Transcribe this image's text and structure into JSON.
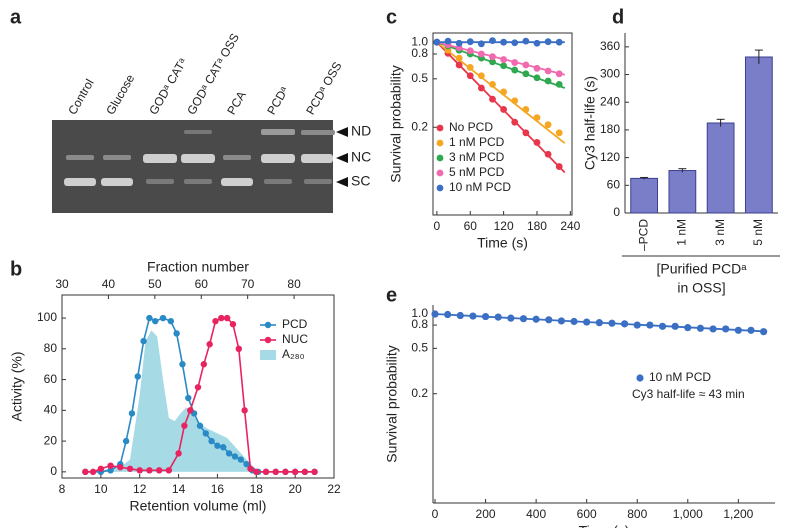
{
  "panel_labels": [
    "a",
    "b",
    "c",
    "d",
    "e"
  ],
  "gel": {
    "lanes": [
      "Control",
      "Glucose",
      "GODᵃ CATᵃ",
      "GODᵃ CATᵃ OSS",
      "PCA",
      "PCDᵃ",
      "PCDᵃ OSS"
    ],
    "band_labels": [
      "ND",
      "NC",
      "SC"
    ]
  },
  "chart_data": [
    {
      "type": "line",
      "xlabel": "Retention volume (ml)",
      "ylabel": "Activity (%)",
      "x2label": "Fraction number",
      "xlim": [
        8,
        22
      ],
      "xticks": [
        8,
        10,
        12,
        14,
        16,
        18,
        20,
        22
      ],
      "x2lim": [
        30,
        88.6
      ],
      "x2ticks": [
        30,
        40,
        50,
        60,
        70,
        80
      ],
      "ylim": [
        -4,
        115
      ],
      "yticks": [
        0,
        20,
        40,
        60,
        80,
        100
      ],
      "legend": "upper right",
      "series": [
        {
          "name": "PCD",
          "color": "#2a8ac6",
          "kind": "line",
          "x": [
            9.2,
            10,
            10.5,
            11,
            11.3,
            11.6,
            11.9,
            12.2,
            12.5,
            12.8,
            13.2,
            13.6,
            13.9,
            14.2,
            14.5,
            14.8,
            15.1,
            15.4,
            15.7,
            16,
            16.3,
            16.6,
            16.9,
            17.2,
            17.5,
            17.8,
            18.1,
            18.5,
            19,
            19.5,
            20,
            20.5,
            21
          ],
          "values": [
            0,
            0,
            1,
            5,
            20,
            38,
            62,
            85,
            100,
            98,
            100,
            98,
            90,
            70,
            48,
            38,
            30,
            25,
            20,
            17,
            16,
            12,
            10,
            8,
            5,
            1,
            0,
            0,
            0,
            0,
            0,
            0,
            0
          ]
        },
        {
          "name": "NUC",
          "color": "#e8235f",
          "kind": "line",
          "x": [
            9.2,
            9.6,
            10,
            10.5,
            11,
            11.5,
            12,
            12.5,
            13,
            13.5,
            14,
            14.3,
            14.6,
            15,
            15.3,
            15.6,
            15.9,
            16.2,
            16.5,
            16.8,
            17.1,
            17.4,
            17.7,
            18,
            18.5,
            19,
            19.5,
            20,
            20.5,
            21
          ],
          "values": [
            0,
            0,
            2,
            4,
            3,
            2,
            1,
            1,
            1,
            1,
            12,
            30,
            40,
            55,
            70,
            83,
            98,
            100,
            100,
            96,
            80,
            40,
            2,
            0,
            0,
            0,
            0,
            0,
            0,
            0
          ]
        },
        {
          "name": "A₂₈₀",
          "color": "#a6dbe6",
          "kind": "area",
          "x": [
            9,
            10,
            11,
            11.5,
            12,
            12.3,
            12.6,
            12.9,
            13.2,
            13.5,
            13.8,
            14.1,
            14.4,
            14.7,
            15,
            15.5,
            16,
            16.5,
            17,
            17.5,
            18,
            18.5,
            21
          ],
          "values": [
            0,
            1,
            3,
            8,
            50,
            85,
            92,
            88,
            60,
            35,
            33,
            38,
            42,
            38,
            32,
            28,
            25,
            22,
            15,
            8,
            1,
            0,
            0
          ]
        }
      ]
    },
    {
      "type": "scatter",
      "xlabel": "Time (s)",
      "ylabel": "Survival probability",
      "log_y": true,
      "xlim": [
        -7,
        243
      ],
      "xticks": [
        0,
        60,
        120,
        180,
        240
      ],
      "ylim": [
        0.038,
        1.19
      ],
      "yticks": [
        0.2,
        0.5,
        0.8,
        {
          "value": 1,
          "label": "1.0"
        }
      ],
      "legend": "lower left",
      "x": [
        0,
        20,
        40,
        60,
        80,
        100,
        120,
        140,
        160,
        180,
        200,
        220
      ],
      "fit_x": [
        0,
        230
      ],
      "series": [
        {
          "name": "No PCD",
          "color": "#e8364a",
          "values": [
            1,
            0.81,
            0.65,
            0.53,
            0.42,
            0.34,
            0.28,
            0.22,
            0.18,
            0.15,
            0.12,
            0.095
          ],
          "fit": [
            1,
            0.085
          ]
        },
        {
          "name": "1 nM PCD",
          "color": "#f5a623",
          "values": [
            1,
            0.86,
            0.74,
            0.62,
            0.53,
            0.45,
            0.39,
            0.33,
            0.28,
            0.24,
            0.21,
            0.18
          ],
          "fit": [
            1,
            0.148
          ]
        },
        {
          "name": "3 nM PCD",
          "color": "#2fa84f",
          "values": [
            1,
            0.93,
            0.86,
            0.8,
            0.74,
            0.69,
            0.64,
            0.59,
            0.55,
            0.51,
            0.48,
            0.45
          ],
          "fit": [
            1,
            0.42
          ]
        },
        {
          "name": "5 nM PCD",
          "color": "#f06ab0",
          "values": [
            1,
            0.95,
            0.9,
            0.85,
            0.8,
            0.76,
            0.72,
            0.68,
            0.65,
            0.61,
            0.58,
            0.55
          ],
          "fit": [
            1,
            0.54
          ]
        },
        {
          "name": "10 nM PCD",
          "color": "#3a6fc4",
          "values": [
            1,
            1.02,
            0.98,
            1.01,
            0.97,
            1.03,
            1,
            0.99,
            1.02,
            0.98,
            1.01,
            1
          ],
          "fit": [
            1,
            1
          ]
        }
      ]
    },
    {
      "type": "bar",
      "ylabel": "Cy3 half-life (s)",
      "xlabel": [
        "[Purified PCDᵃ",
        "in OSS]"
      ],
      "categories": [
        "–PCD",
        "1 nM",
        "3 nM",
        "5 nM"
      ],
      "values": [
        75,
        92,
        195,
        338
      ],
      "errors": [
        2,
        4,
        8,
        15
      ],
      "color": "#7a7ec8",
      "ylim": [
        0,
        390
      ],
      "yticks": [
        0,
        60,
        120,
        180,
        240,
        300,
        360
      ]
    },
    {
      "type": "scatter",
      "xlabel": "Time (s)",
      "ylabel": "Survival probability",
      "log_y": true,
      "xlim": [
        -8,
        1345
      ],
      "xticks": [
        0,
        200,
        400,
        600,
        800,
        {
          "value": 1000,
          "label": "1,000"
        },
        {
          "value": 1200,
          "label": "1,200"
        }
      ],
      "ylim": [
        0.022,
        1.2
      ],
      "yticks": [
        0.2,
        0.5,
        0.8,
        {
          "value": 1,
          "label": "1.0"
        }
      ],
      "legend": "right",
      "annotation": "Cy3 half-life ≈ 43 min",
      "x": [
        0,
        50,
        100,
        150,
        200,
        250,
        300,
        350,
        400,
        450,
        500,
        550,
        600,
        650,
        700,
        750,
        800,
        850,
        900,
        950,
        1000,
        1050,
        1100,
        1150,
        1200,
        1250,
        1300
      ],
      "fit_x": [
        0,
        1300
      ],
      "series": [
        {
          "name": "10 nM PCD",
          "color": "#3a6fc4",
          "values": [
            1,
            0.99,
            0.97,
            0.96,
            0.95,
            0.94,
            0.92,
            0.91,
            0.9,
            0.89,
            0.87,
            0.86,
            0.85,
            0.84,
            0.83,
            0.82,
            0.8,
            0.8,
            0.78,
            0.78,
            0.76,
            0.75,
            0.74,
            0.74,
            0.72,
            0.72,
            0.7
          ],
          "fit": [
            1,
            0.705
          ]
        }
      ]
    }
  ]
}
